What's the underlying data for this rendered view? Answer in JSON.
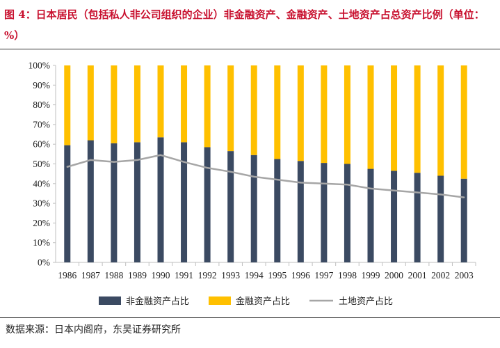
{
  "title": "图 4：日本居民（包括私人非公司组织的企业）非金融资产、金融资产、土地资产占总资产比例（单位：%）",
  "source": "数据来源：日本内阁府，东吴证券研究所",
  "colors": {
    "title": "#c8102e",
    "non_financial": "#3b4a62",
    "financial": "#ffc000",
    "land": "#a6a6a6"
  },
  "chart_data": {
    "type": "bar",
    "stacked": true,
    "title": "",
    "xlabel": "",
    "ylabel": "",
    "ylim": [
      0,
      100
    ],
    "y_ticks": [
      "0%",
      "10%",
      "20%",
      "30%",
      "40%",
      "50%",
      "60%",
      "70%",
      "80%",
      "90%",
      "100%"
    ],
    "categories": [
      "1986",
      "1987",
      "1988",
      "1989",
      "1990",
      "1991",
      "1992",
      "1993",
      "1994",
      "1995",
      "1996",
      "1997",
      "1998",
      "1999",
      "2000",
      "2001",
      "2002",
      "2003"
    ],
    "series": [
      {
        "name": "非金融资产占比",
        "type": "bar",
        "values": [
          59.5,
          62,
          60.5,
          61,
          63.5,
          61,
          58.5,
          56.5,
          54.5,
          52.5,
          51.5,
          50.5,
          50,
          47.5,
          46.5,
          45.5,
          44,
          42.5
        ]
      },
      {
        "name": "金融资产占比",
        "type": "bar",
        "values": [
          40.5,
          38,
          39.5,
          39,
          36.5,
          39,
          41.5,
          43.5,
          45.5,
          47.5,
          48.5,
          49.5,
          50,
          52.5,
          53.5,
          54.5,
          56,
          57.5
        ]
      },
      {
        "name": "土地资产占比",
        "type": "line",
        "values": [
          48.5,
          52,
          51,
          52,
          54.5,
          51,
          48,
          46,
          43.5,
          42,
          40.5,
          40,
          39.5,
          37.5,
          36.5,
          35.5,
          34.5,
          33
        ]
      }
    ],
    "grid": false,
    "legend_position": "bottom"
  }
}
